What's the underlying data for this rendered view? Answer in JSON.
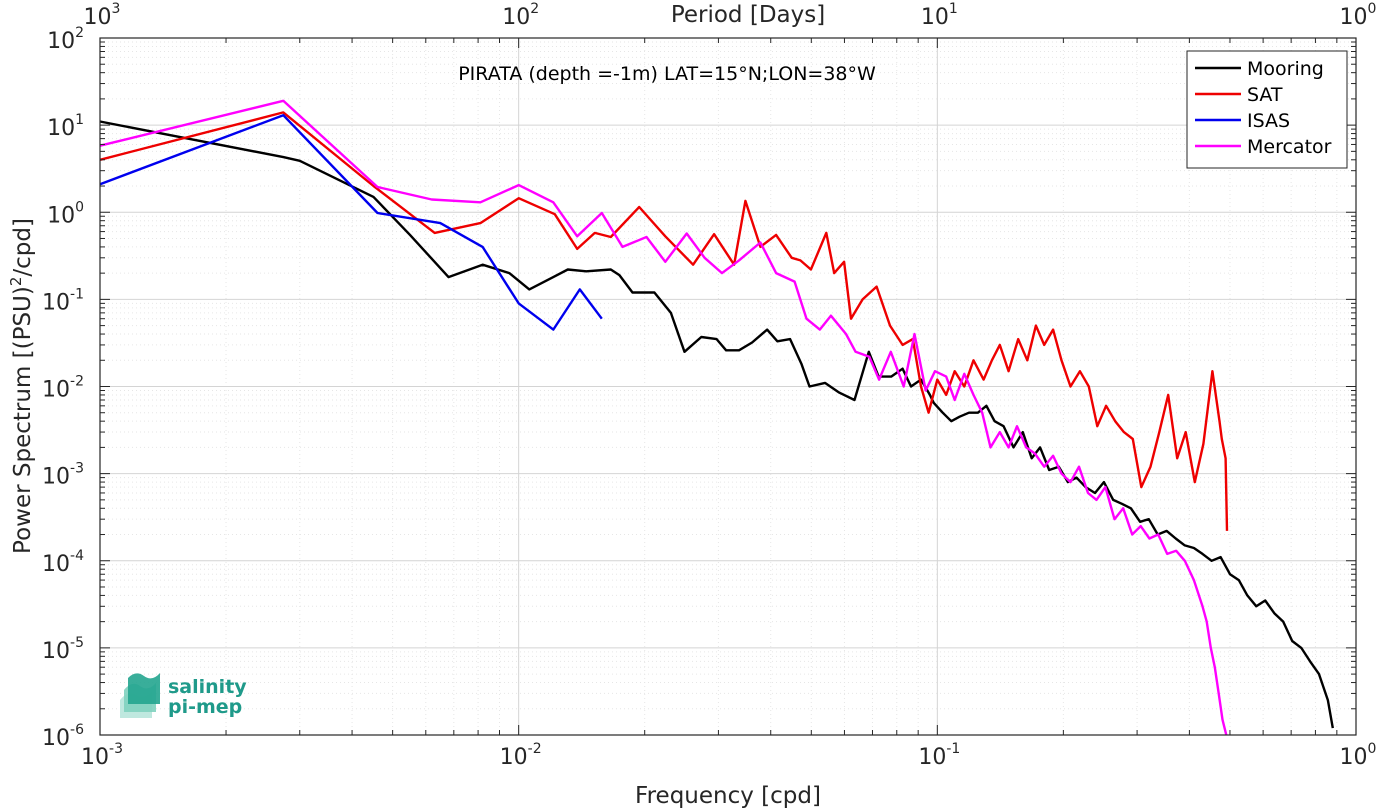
{
  "chart_data": {
    "type": "line",
    "title": "PIRATA (depth =-1m) LAT=15°N;LON=38°W",
    "xlabel": "Frequency [cpd]",
    "ylabel": "Power Spectrum [(PSU)²/cpd]",
    "ylabel_parts": {
      "pre": "Power Spectrum [(PSU)",
      "sup": "2",
      "post": "/cpd]"
    },
    "top_xlabel": "Period [Days]",
    "x_scale": "log",
    "y_scale": "log",
    "xlim": [
      0.001,
      1
    ],
    "ylim": [
      1e-06,
      100
    ],
    "grid": true,
    "minor_grid": true,
    "legend_position": "top-right",
    "x_ticks": [
      {
        "value": 0.001,
        "base": "10",
        "exp": "-3"
      },
      {
        "value": 0.01,
        "base": "10",
        "exp": "-2"
      },
      {
        "value": 0.1,
        "base": "10",
        "exp": "-1"
      },
      {
        "value": 1,
        "base": "10",
        "exp": "0"
      }
    ],
    "top_ticks": [
      {
        "value": 0.001,
        "base": "10",
        "exp": "3"
      },
      {
        "value": 0.01,
        "base": "10",
        "exp": "2"
      },
      {
        "value": 0.1,
        "base": "10",
        "exp": "1"
      },
      {
        "value": 1,
        "base": "10",
        "exp": "0"
      }
    ],
    "y_ticks": [
      {
        "value": 100,
        "base": "10",
        "exp": "2"
      },
      {
        "value": 10,
        "base": "10",
        "exp": "1"
      },
      {
        "value": 1,
        "base": "10",
        "exp": "0"
      },
      {
        "value": 0.1,
        "base": "10",
        "exp": "-1"
      },
      {
        "value": 0.01,
        "base": "10",
        "exp": "-2"
      },
      {
        "value": 0.001,
        "base": "10",
        "exp": "-3"
      },
      {
        "value": 0.0001,
        "base": "10",
        "exp": "-4"
      },
      {
        "value": 1e-05,
        "base": "10",
        "exp": "-5"
      },
      {
        "value": 1e-06,
        "base": "10",
        "exp": "-6"
      }
    ],
    "series": [
      {
        "name": "Mooring",
        "color": "#000000",
        "points": [
          [
            0.001,
            11.0
          ],
          [
            0.00274,
            4.3
          ],
          [
            0.003,
            3.9
          ],
          [
            0.0045,
            1.5
          ],
          [
            0.0055,
            0.55
          ],
          [
            0.0068,
            0.18
          ],
          [
            0.0082,
            0.25
          ],
          [
            0.0095,
            0.2
          ],
          [
            0.0106,
            0.13
          ],
          [
            0.0121,
            0.18
          ],
          [
            0.0131,
            0.22
          ],
          [
            0.0145,
            0.21
          ],
          [
            0.0166,
            0.22
          ],
          [
            0.0174,
            0.19
          ],
          [
            0.0187,
            0.12
          ],
          [
            0.0211,
            0.12
          ],
          [
            0.0231,
            0.07
          ],
          [
            0.0249,
            0.025
          ],
          [
            0.0273,
            0.037
          ],
          [
            0.0297,
            0.035
          ],
          [
            0.0313,
            0.026
          ],
          [
            0.0336,
            0.026
          ],
          [
            0.0361,
            0.032
          ],
          [
            0.0392,
            0.045
          ],
          [
            0.0415,
            0.033
          ],
          [
            0.0445,
            0.035
          ],
          [
            0.0474,
            0.018
          ],
          [
            0.0495,
            0.01
          ],
          [
            0.0539,
            0.011
          ],
          [
            0.0583,
            0.0085
          ],
          [
            0.0634,
            0.007
          ],
          [
            0.0686,
            0.025
          ],
          [
            0.0724,
            0.013
          ],
          [
            0.0776,
            0.013
          ],
          [
            0.0826,
            0.016
          ],
          [
            0.0865,
            0.01
          ],
          [
            0.0914,
            0.012
          ],
          [
            0.096,
            0.008
          ],
          [
            0.098,
            0.0065
          ],
          [
            0.103,
            0.005
          ],
          [
            0.108,
            0.004
          ],
          [
            0.113,
            0.0045
          ],
          [
            0.119,
            0.005
          ],
          [
            0.125,
            0.005
          ],
          [
            0.131,
            0.006
          ],
          [
            0.137,
            0.004
          ],
          [
            0.144,
            0.0035
          ],
          [
            0.152,
            0.002
          ],
          [
            0.16,
            0.003
          ],
          [
            0.168,
            0.0015
          ],
          [
            0.176,
            0.002
          ],
          [
            0.185,
            0.0011
          ],
          [
            0.195,
            0.0012
          ],
          [
            0.205,
            0.0008
          ],
          [
            0.215,
            0.0009
          ],
          [
            0.226,
            0.0007
          ],
          [
            0.238,
            0.0006
          ],
          [
            0.25,
            0.0008
          ],
          [
            0.263,
            0.0005
          ],
          [
            0.276,
            0.00045
          ],
          [
            0.29,
            0.0004
          ],
          [
            0.305,
            0.00028
          ],
          [
            0.32,
            0.0003
          ],
          [
            0.336,
            0.0002
          ],
          [
            0.353,
            0.00022
          ],
          [
            0.371,
            0.00018
          ],
          [
            0.39,
            0.00015
          ],
          [
            0.41,
            0.00014
          ],
          [
            0.43,
            0.00012
          ],
          [
            0.452,
            0.0001
          ],
          [
            0.475,
            0.00011
          ],
          [
            0.5,
            7e-05
          ],
          [
            0.525,
            6e-05
          ],
          [
            0.55,
            4e-05
          ],
          [
            0.578,
            3e-05
          ],
          [
            0.607,
            3.5e-05
          ],
          [
            0.638,
            2.5e-05
          ],
          [
            0.67,
            2e-05
          ],
          [
            0.704,
            1.2e-05
          ],
          [
            0.74,
            1e-05
          ],
          [
            0.777,
            7e-06
          ],
          [
            0.816,
            5e-06
          ],
          [
            0.857,
            2.5e-06
          ],
          [
            0.88,
            1.2e-06
          ]
        ]
      },
      {
        "name": "SAT",
        "color": "#ee0000",
        "points": [
          [
            0.001,
            4.0
          ],
          [
            0.00274,
            14.0
          ],
          [
            0.0045,
            2.0
          ],
          [
            0.0063,
            0.58
          ],
          [
            0.0081,
            0.75
          ],
          [
            0.01,
            1.45
          ],
          [
            0.0122,
            0.95
          ],
          [
            0.0138,
            0.38
          ],
          [
            0.0152,
            0.58
          ],
          [
            0.0166,
            0.52
          ],
          [
            0.0194,
            1.15
          ],
          [
            0.0224,
            0.53
          ],
          [
            0.0261,
            0.25
          ],
          [
            0.0293,
            0.56
          ],
          [
            0.0327,
            0.25
          ],
          [
            0.0348,
            1.35
          ],
          [
            0.0378,
            0.4
          ],
          [
            0.0412,
            0.55
          ],
          [
            0.0449,
            0.3
          ],
          [
            0.0471,
            0.28
          ],
          [
            0.0499,
            0.22
          ],
          [
            0.0543,
            0.58
          ],
          [
            0.0567,
            0.2
          ],
          [
            0.0599,
            0.27
          ],
          [
            0.0622,
            0.06
          ],
          [
            0.0663,
            0.1
          ],
          [
            0.0716,
            0.14
          ],
          [
            0.0771,
            0.05
          ],
          [
            0.0826,
            0.03
          ],
          [
            0.0874,
            0.035
          ],
          [
            0.0914,
            0.01
          ],
          [
            0.0953,
            0.005
          ],
          [
            0.1,
            0.012
          ],
          [
            0.105,
            0.008
          ],
          [
            0.11,
            0.015
          ],
          [
            0.116,
            0.01
          ],
          [
            0.122,
            0.02
          ],
          [
            0.129,
            0.012
          ],
          [
            0.135,
            0.02
          ],
          [
            0.141,
            0.03
          ],
          [
            0.148,
            0.015
          ],
          [
            0.156,
            0.035
          ],
          [
            0.164,
            0.02
          ],
          [
            0.172,
            0.05
          ],
          [
            0.18,
            0.03
          ],
          [
            0.189,
            0.045
          ],
          [
            0.198,
            0.02
          ],
          [
            0.208,
            0.01
          ],
          [
            0.219,
            0.015
          ],
          [
            0.23,
            0.01
          ],
          [
            0.241,
            0.0035
          ],
          [
            0.253,
            0.006
          ],
          [
            0.266,
            0.004
          ],
          [
            0.279,
            0.003
          ],
          [
            0.293,
            0.0025
          ],
          [
            0.307,
            0.0007
          ],
          [
            0.323,
            0.0012
          ],
          [
            0.339,
            0.003
          ],
          [
            0.356,
            0.008
          ],
          [
            0.374,
            0.0015
          ],
          [
            0.392,
            0.003
          ],
          [
            0.412,
            0.0008
          ],
          [
            0.432,
            0.0022
          ],
          [
            0.454,
            0.015
          ],
          [
            0.472,
            0.004
          ],
          [
            0.478,
            0.0025
          ],
          [
            0.488,
            0.0015
          ],
          [
            0.492,
            0.00022
          ]
        ]
      },
      {
        "name": "ISAS",
        "color": "#0000ee",
        "points": [
          [
            0.001,
            2.1
          ],
          [
            0.00274,
            13.0
          ],
          [
            0.0046,
            0.98
          ],
          [
            0.0065,
            0.75
          ],
          [
            0.0082,
            0.4
          ],
          [
            0.01,
            0.09
          ],
          [
            0.0121,
            0.045
          ],
          [
            0.014,
            0.13
          ],
          [
            0.0158,
            0.06
          ]
        ]
      },
      {
        "name": "Mercator",
        "color": "#ff00ff",
        "points": [
          [
            0.001,
            5.8
          ],
          [
            0.00274,
            19.0
          ],
          [
            0.0046,
            1.95
          ],
          [
            0.0062,
            1.4
          ],
          [
            0.0081,
            1.3
          ],
          [
            0.01,
            2.05
          ],
          [
            0.0121,
            1.3
          ],
          [
            0.0138,
            0.53
          ],
          [
            0.0158,
            0.98
          ],
          [
            0.0177,
            0.4
          ],
          [
            0.0202,
            0.52
          ],
          [
            0.0224,
            0.27
          ],
          [
            0.0252,
            0.57
          ],
          [
            0.0278,
            0.3
          ],
          [
            0.0306,
            0.2
          ],
          [
            0.0336,
            0.28
          ],
          [
            0.0378,
            0.45
          ],
          [
            0.0412,
            0.2
          ],
          [
            0.0456,
            0.16
          ],
          [
            0.0487,
            0.06
          ],
          [
            0.0524,
            0.045
          ],
          [
            0.0557,
            0.065
          ],
          [
            0.0605,
            0.04
          ],
          [
            0.0638,
            0.025
          ],
          [
            0.0688,
            0.022
          ],
          [
            0.0726,
            0.012
          ],
          [
            0.0774,
            0.025
          ],
          [
            0.0831,
            0.01
          ],
          [
            0.0882,
            0.04
          ],
          [
            0.0938,
            0.009
          ],
          [
            0.0987,
            0.015
          ],
          [
            0.105,
            0.013
          ],
          [
            0.11,
            0.007
          ],
          [
            0.116,
            0.014
          ],
          [
            0.122,
            0.008
          ],
          [
            0.128,
            0.005
          ],
          [
            0.134,
            0.002
          ],
          [
            0.141,
            0.003
          ],
          [
            0.148,
            0.002
          ],
          [
            0.155,
            0.0035
          ],
          [
            0.163,
            0.002
          ],
          [
            0.171,
            0.0017
          ],
          [
            0.18,
            0.0012
          ],
          [
            0.189,
            0.0016
          ],
          [
            0.198,
            0.001
          ],
          [
            0.208,
            0.0008
          ],
          [
            0.218,
            0.0012
          ],
          [
            0.229,
            0.0006
          ],
          [
            0.24,
            0.0005
          ],
          [
            0.252,
            0.0007
          ],
          [
            0.265,
            0.0003
          ],
          [
            0.278,
            0.0004
          ],
          [
            0.292,
            0.0002
          ],
          [
            0.306,
            0.00025
          ],
          [
            0.321,
            0.00018
          ],
          [
            0.337,
            0.0002
          ],
          [
            0.354,
            0.00012
          ],
          [
            0.372,
            0.00013
          ],
          [
            0.39,
            0.0001
          ],
          [
            0.41,
            6e-05
          ],
          [
            0.43,
            3e-05
          ],
          [
            0.44,
            2e-05
          ],
          [
            0.45,
            1e-05
          ],
          [
            0.46,
            6e-06
          ],
          [
            0.47,
            3e-06
          ],
          [
            0.48,
            1.5e-06
          ],
          [
            0.49,
            1e-06
          ]
        ]
      }
    ]
  },
  "legend": {
    "items": [
      {
        "label": "Mooring",
        "color": "#000000"
      },
      {
        "label": "SAT",
        "color": "#ee0000"
      },
      {
        "label": "ISAS",
        "color": "#0000ee"
      },
      {
        "label": "Mercator",
        "color": "#ff00ff"
      }
    ]
  },
  "logo": {
    "line1": "salinity",
    "line2": "pi-mep",
    "icon": "wave-layers-icon"
  }
}
